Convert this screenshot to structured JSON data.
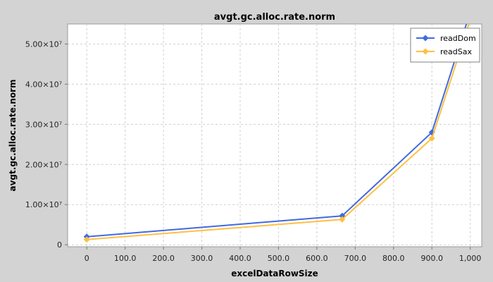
{
  "chart_data": {
    "type": "line",
    "title": "avgt.gc.alloc.rate.norm",
    "xlabel": "excelDataRowSize",
    "ylabel": "avgt.gc.alloc.rate.norm",
    "xlim": [
      -50,
      1030
    ],
    "ylim": [
      -500000,
      55000000
    ],
    "x_ticks": [
      0,
      100,
      200,
      300,
      400,
      500,
      600,
      700,
      800,
      900,
      1000
    ],
    "x_tick_labels": [
      "0",
      "100.0",
      "200.0",
      "300.0",
      "400.0",
      "500.0",
      "600.0",
      "700.0",
      "800.0",
      "900.0",
      "1,000"
    ],
    "y_ticks": [
      0,
      10000000,
      20000000,
      30000000,
      40000000,
      50000000
    ],
    "y_tick_labels": [
      "0",
      "1.00×10⁷",
      "2.00×10⁷",
      "3.00×10⁷",
      "4.00×10⁷",
      "5.00×10⁷"
    ],
    "grid": true,
    "legend_position": "top-right",
    "series": [
      {
        "name": "readDom",
        "color": "#4169e1",
        "marker": "diamond",
        "x": [
          0,
          666,
          900,
          1000
        ],
        "y": [
          2000000,
          7200000,
          28000000,
          58000000
        ]
      },
      {
        "name": "readSax",
        "color": "#ffc040",
        "marker": "diamond",
        "x": [
          0,
          666,
          900,
          1000
        ],
        "y": [
          1300000,
          6300000,
          26500000,
          56000000
        ]
      }
    ]
  }
}
